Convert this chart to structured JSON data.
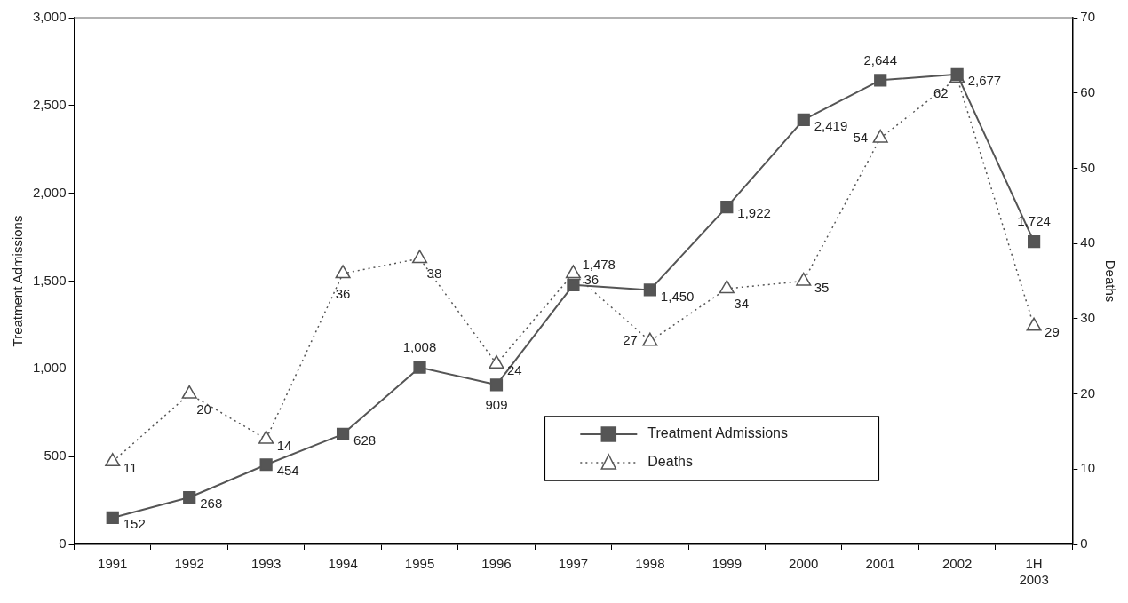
{
  "chart_data": {
    "type": "line",
    "categories": [
      "1991",
      "1992",
      "1993",
      "1994",
      "1995",
      "1996",
      "1997",
      "1998",
      "1999",
      "2000",
      "2001",
      "2002",
      "1H 2003"
    ],
    "ylabel": "Treatment Admissions",
    "y2label": "Deaths",
    "ylim": [
      0,
      3000
    ],
    "yticks": [
      0,
      {
        "value": 500,
        "label": "500"
      },
      {
        "value": 1000,
        "label": "1,000"
      },
      {
        "value": 1500,
        "label": "1,500"
      },
      {
        "value": 2000,
        "label": "2,000"
      },
      {
        "value": 2500,
        "label": "2,500"
      },
      {
        "value": 3000,
        "label": "3,000"
      }
    ],
    "y2lim": [
      0,
      70
    ],
    "y2ticks": [
      0,
      10,
      20,
      30,
      40,
      50,
      60,
      70
    ],
    "grid": false,
    "legend": "bottom right",
    "series": [
      {
        "name": "Treatment Admissions",
        "color": "#555555",
        "marker": "square",
        "line_style": "solid",
        "values": [
          152,
          268,
          454,
          628,
          1008,
          909,
          1478,
          1450,
          1922,
          2419,
          2644,
          2677,
          1724
        ],
        "value_labels": [
          "152",
          "268",
          "454",
          "628",
          "1,008",
          "909",
          "1,478",
          "1,450",
          "1,922",
          "2,419",
          "2,644",
          "2,677",
          "1,724"
        ]
      },
      {
        "name": "Deaths",
        "color": "#555555",
        "marker": "triangle",
        "line_style": "dotted",
        "axis": "y2",
        "values": [
          11,
          20,
          14,
          36,
          38,
          24,
          36,
          27,
          34,
          35,
          54,
          62,
          29
        ],
        "value_labels": [
          "11",
          "20",
          "14",
          "36",
          "38",
          "24",
          "36",
          "27",
          "34",
          "35",
          "54",
          "62",
          "29"
        ]
      }
    ]
  }
}
